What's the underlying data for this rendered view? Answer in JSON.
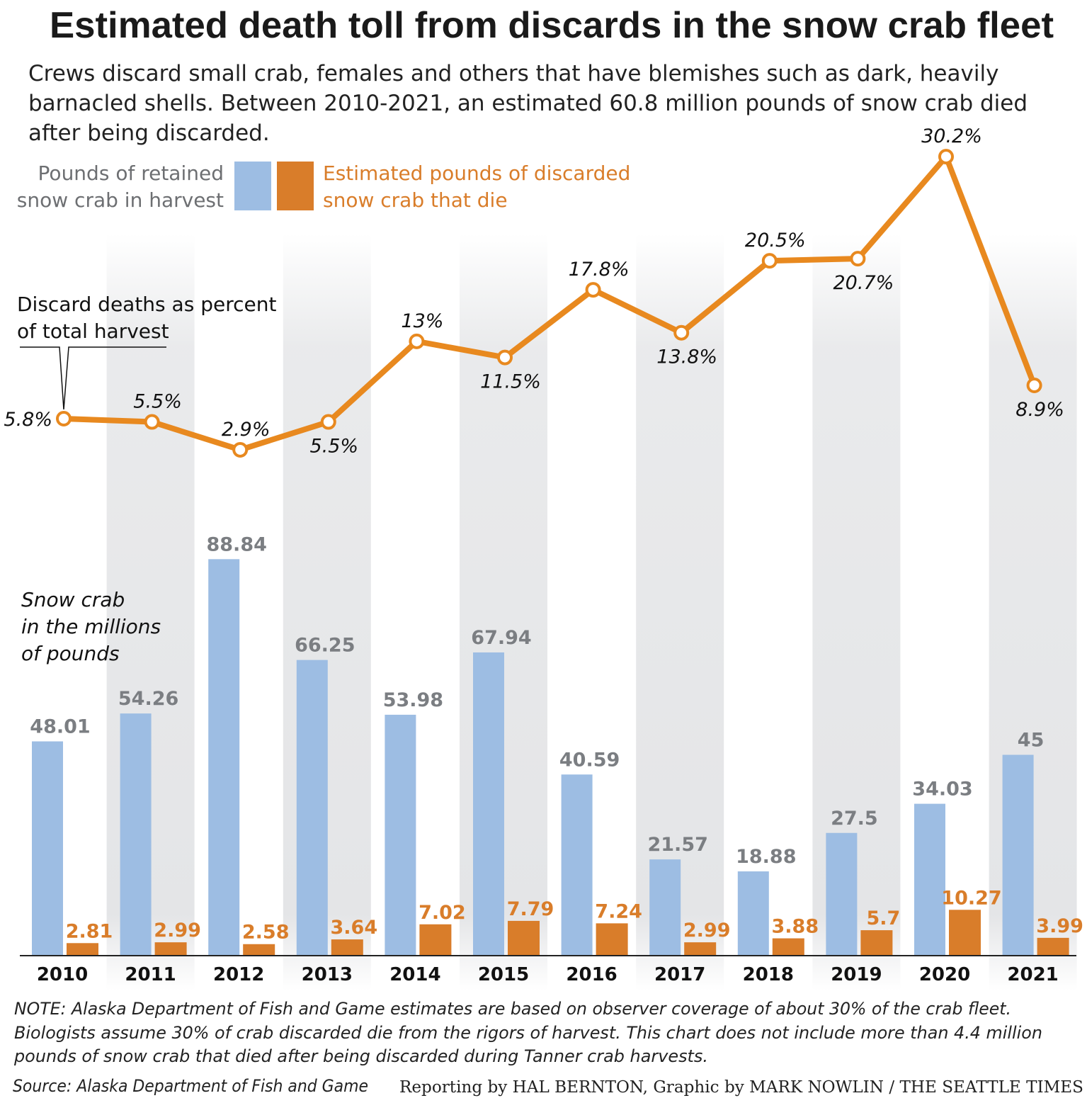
{
  "title": "Estimated death toll from discards in the snow crab fleet",
  "subtitle": [
    "Crews discard small crab, females and others that have blemishes such as dark, heavily",
    "barnacled shells. Between 2010-2021, an estimated 60.8 million pounds of snow crab died",
    "after being discarded."
  ],
  "legend": {
    "retained": [
      "Pounds of retained",
      "snow crab in harvest"
    ],
    "discarded": [
      "Estimated pounds of discarded",
      "snow crab that die"
    ]
  },
  "callout": [
    "Discard deaths as percent",
    "of total harvest"
  ],
  "axis_label": [
    "Snow crab",
    "in the millions",
    "of pounds"
  ],
  "colors": {
    "retained": "#9dbde3",
    "discarded": "#d97d2a",
    "band": "#e4e5e7",
    "line": "#e8891f"
  },
  "chart_data": {
    "type": "bar+line",
    "title": "Estimated death toll from discards in the snow crab fleet",
    "ylabel": "Snow crab in the millions of pounds",
    "categories": [
      "2010",
      "2011",
      "2012",
      "2013",
      "2014",
      "2015",
      "2016",
      "2017",
      "2018",
      "2019",
      "2020",
      "2021"
    ],
    "series": [
      {
        "name": "Pounds of retained snow crab in harvest",
        "type": "bar",
        "values": [
          48.01,
          54.26,
          88.84,
          66.25,
          53.98,
          67.94,
          40.59,
          21.57,
          18.88,
          27.5,
          34.03,
          45
        ],
        "labels": [
          "48.01",
          "54.26",
          "88.84",
          "66.25",
          "53.98",
          "67.94",
          "40.59",
          "21.57",
          "18.88",
          "27.5",
          "34.03",
          "45"
        ]
      },
      {
        "name": "Estimated pounds of discarded snow crab that die",
        "type": "bar",
        "values": [
          2.81,
          2.99,
          2.58,
          3.64,
          7.02,
          7.79,
          7.24,
          2.99,
          3.88,
          5.7,
          10.27,
          3.99
        ],
        "labels": [
          "2.81",
          "2.99",
          "2.58",
          "3.64",
          "7.02",
          "7.79",
          "7.24",
          "2.99",
          "3.88",
          "5.7",
          "10.27",
          "3.99"
        ]
      },
      {
        "name": "Discard deaths as percent of total harvest",
        "type": "line",
        "values": [
          5.8,
          5.5,
          2.9,
          5.5,
          13,
          11.5,
          17.8,
          13.8,
          20.5,
          20.7,
          30.2,
          8.9
        ],
        "labels": [
          "5.8%",
          "5.5%",
          "2.9%",
          "5.5%",
          "13%",
          "11.5%",
          "17.8%",
          "13.8%",
          "20.5%",
          "20.7%",
          "30.2%",
          "8.9%"
        ],
        "label_placement": [
          "left",
          "above",
          "above",
          "below",
          "above",
          "below",
          "above",
          "below",
          "above",
          "below",
          "above",
          "below"
        ]
      }
    ],
    "ylim_bars": [
      0,
      90
    ],
    "grid": false,
    "legend_placement": "top-left"
  },
  "note": [
    "NOTE: Alaska Department of Fish and Game estimates are based on observer coverage of about 30% of the crab fleet.",
    "Biologists assume 30% of crab discarded die from the rigors of harvest. This chart does not include more than 4.4 million",
    "pounds of snow crab that died after being discarded during Tanner crab harvests."
  ],
  "source": "Source: Alaska Department of Fish and Game",
  "credit": "Reporting by HAL BERNTON, Graphic by MARK NOWLIN / THE SEATTLE TIMES"
}
